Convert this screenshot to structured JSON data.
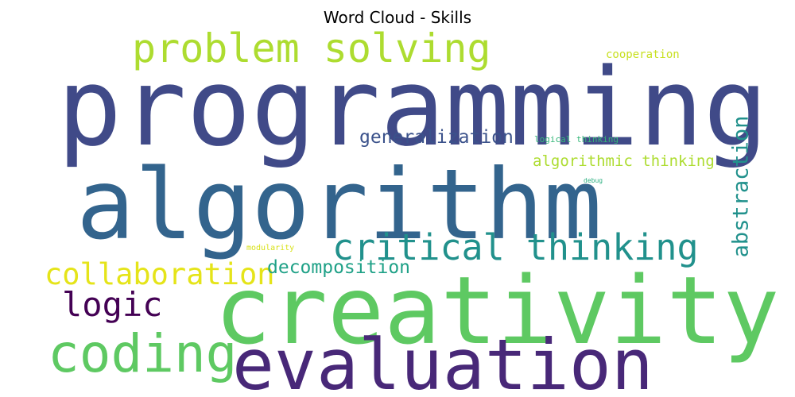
{
  "chart_data": {
    "type": "wordcloud",
    "title": "Word Cloud - Skills",
    "colormap": "viridis",
    "background": "#ffffff",
    "words": [
      {
        "text": "programming",
        "weight": 1.0,
        "color": "#404a88",
        "orientation": "horizontal"
      },
      {
        "text": "algorithm",
        "weight": 0.92,
        "color": "#33648d",
        "orientation": "horizontal"
      },
      {
        "text": "creativity",
        "weight": 0.88,
        "color": "#5ec962",
        "orientation": "horizontal"
      },
      {
        "text": "evaluation",
        "weight": 0.66,
        "color": "#482878",
        "orientation": "horizontal"
      },
      {
        "text": "coding",
        "weight": 0.5,
        "color": "#5ec962",
        "orientation": "horizontal"
      },
      {
        "text": "problem solving",
        "weight": 0.4,
        "color": "#addc30",
        "orientation": "horizontal"
      },
      {
        "text": "critical thinking",
        "weight": 0.38,
        "color": "#21918c",
        "orientation": "horizontal"
      },
      {
        "text": "logic",
        "weight": 0.32,
        "color": "#440154",
        "orientation": "horizontal"
      },
      {
        "text": "collaboration",
        "weight": 0.3,
        "color": "#e5e419",
        "orientation": "horizontal"
      },
      {
        "text": "abstraction",
        "weight": 0.26,
        "color": "#21918c",
        "orientation": "vertical"
      },
      {
        "text": "generalization",
        "weight": 0.22,
        "color": "#3b528b",
        "orientation": "horizontal"
      },
      {
        "text": "decomposition",
        "weight": 0.22,
        "color": "#1fa187",
        "orientation": "horizontal"
      },
      {
        "text": "algorithmic thinking",
        "weight": 0.18,
        "color": "#addc30",
        "orientation": "horizontal"
      },
      {
        "text": "cooperation",
        "weight": 0.12,
        "color": "#c8e020",
        "orientation": "horizontal"
      },
      {
        "text": "logical thinking",
        "weight": 0.09,
        "color": "#35b779",
        "orientation": "horizontal"
      },
      {
        "text": "modularity",
        "weight": 0.08,
        "color": "#d8e219",
        "orientation": "horizontal"
      },
      {
        "text": "debug",
        "weight": 0.05,
        "color": "#29af7f",
        "orientation": "horizontal"
      }
    ]
  }
}
